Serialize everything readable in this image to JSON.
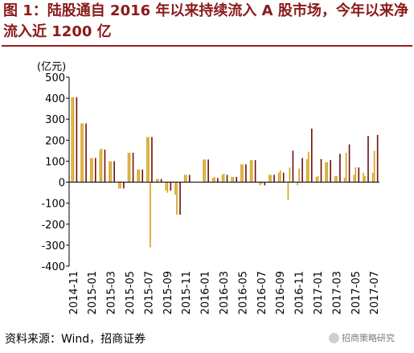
{
  "title": "图 1：陆股通自 2016 年以来持续流入 A 股市场，今年以来净流入近 1200 亿",
  "source": "资料来源：Wind，招商证券",
  "watermark": "招商策略研究",
  "colors": {
    "title": "#8b1a1a",
    "series_light": "#d4a017",
    "series_dark": "#6b1010",
    "accent": "#9b1c1c"
  },
  "chart_data": {
    "type": "bar",
    "ylabel": "(亿元)",
    "ylim": [
      -400,
      500
    ],
    "yticks": [
      500,
      400,
      300,
      200,
      100,
      0,
      -100,
      -200,
      -300,
      -400
    ],
    "grid": false,
    "months": [
      "2014-11",
      "2014-12",
      "2015-01",
      "2015-02",
      "2015-03",
      "2015-04",
      "2015-05",
      "2015-06",
      "2015-07",
      "2015-08",
      "2015-09",
      "2015-10",
      "2015-11",
      "2015-12",
      "2016-01",
      "2016-02",
      "2016-03",
      "2016-04",
      "2016-05",
      "2016-06",
      "2016-07",
      "2016-08",
      "2016-09",
      "2016-10",
      "2016-11",
      "2016-12",
      "2017-01",
      "2017-02",
      "2017-03",
      "2017-04",
      "2017-05",
      "2017-06",
      "2017-07"
    ],
    "xtick_labels": [
      "2014-11",
      "2015-01",
      "2015-03",
      "2015-05",
      "2015-07",
      "2015-09",
      "2015-11",
      "2016-01",
      "2016-03",
      "2016-05",
      "2016-07",
      "2016-09",
      "2016-11",
      "2017-01",
      "2017-03",
      "2017-05",
      "2017-07"
    ],
    "series": [
      {
        "values": [
          405,
          280,
          115,
          155,
          100,
          -30,
          140,
          60,
          215,
          15,
          -40,
          -60,
          35,
          0,
          108,
          20,
          35,
          25,
          85,
          105,
          -15,
          35,
          45,
          -85,
          -15,
          110,
          25,
          95,
          30,
          20,
          35,
          45,
          45
        ]
      },
      {
        "values": [
          405,
          280,
          115,
          160,
          100,
          -30,
          140,
          60,
          215,
          15,
          -50,
          -155,
          35,
          0,
          108,
          25,
          40,
          25,
          85,
          105,
          -10,
          35,
          55,
          70,
          65,
          145,
          30,
          95,
          30,
          140,
          70,
          30,
          150
        ]
      },
      {
        "values": [
          0,
          0,
          0,
          0,
          0,
          0,
          0,
          0,
          -310,
          0,
          0,
          0,
          0,
          0,
          0,
          0,
          0,
          0,
          0,
          0,
          0,
          0,
          0,
          0,
          0,
          0,
          0,
          0,
          0,
          0,
          0,
          0,
          0
        ]
      },
      {
        "values": [
          405,
          280,
          115,
          155,
          100,
          -30,
          140,
          60,
          215,
          15,
          -40,
          -155,
          35,
          0,
          108,
          20,
          35,
          25,
          85,
          105,
          -15,
          35,
          45,
          150,
          115,
          255,
          110,
          105,
          135,
          180,
          70,
          220,
          225
        ]
      }
    ]
  }
}
